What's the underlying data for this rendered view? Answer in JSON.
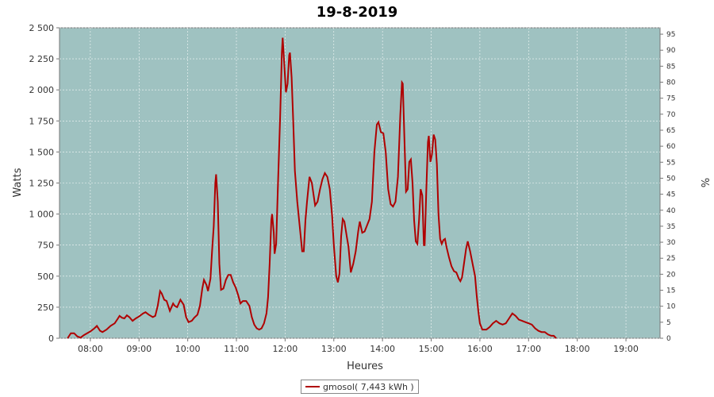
{
  "chart_data": {
    "type": "line",
    "title": "19-8-2019",
    "xlabel": "Heures",
    "ylabel": "Watts",
    "y2label": "%",
    "ylim": [
      0,
      2500
    ],
    "y2lim": [
      0,
      97
    ],
    "xlim": [
      "07:22",
      "19:42"
    ],
    "x_ticks": [
      "08:00",
      "09:00",
      "10:00",
      "11:00",
      "12:00",
      "13:00",
      "14:00",
      "15:00",
      "16:00",
      "17:00",
      "18:00",
      "19:00"
    ],
    "y_ticks": [
      "0",
      "250",
      "500",
      "750",
      "1 000",
      "1 250",
      "1 500",
      "1 750",
      "2 000",
      "2 250",
      "2 500"
    ],
    "y2_ticks": [
      "0",
      "5",
      "10",
      "15",
      "20",
      "25",
      "30",
      "35",
      "40",
      "45",
      "50",
      "55",
      "60",
      "65",
      "70",
      "75",
      "80",
      "85",
      "90",
      "95"
    ],
    "plot_background": "#9fc2c1",
    "grid": true,
    "legend_position": "bottom-center",
    "series": [
      {
        "name": "gmosol( 7,443 kWh )",
        "color": "#b00000",
        "points": [
          [
            "07:32",
            0
          ],
          [
            "07:36",
            40
          ],
          [
            "07:40",
            40
          ],
          [
            "07:44",
            15
          ],
          [
            "07:48",
            5
          ],
          [
            "07:52",
            25
          ],
          [
            "08:00",
            55
          ],
          [
            "08:05",
            80
          ],
          [
            "08:08",
            100
          ],
          [
            "08:12",
            60
          ],
          [
            "08:15",
            50
          ],
          [
            "08:20",
            70
          ],
          [
            "08:25",
            100
          ],
          [
            "08:30",
            120
          ],
          [
            "08:34",
            160
          ],
          [
            "08:36",
            180
          ],
          [
            "08:39",
            165
          ],
          [
            "08:42",
            160
          ],
          [
            "08:45",
            185
          ],
          [
            "08:48",
            170
          ],
          [
            "08:52",
            140
          ],
          [
            "08:56",
            160
          ],
          [
            "09:00",
            175
          ],
          [
            "09:05",
            200
          ],
          [
            "09:08",
            210
          ],
          [
            "09:12",
            190
          ],
          [
            "09:17",
            170
          ],
          [
            "09:20",
            180
          ],
          [
            "09:23",
            260
          ],
          [
            "09:26",
            380
          ],
          [
            "09:28",
            360
          ],
          [
            "09:31",
            310
          ],
          [
            "09:34",
            300
          ],
          [
            "09:38",
            220
          ],
          [
            "09:42",
            280
          ],
          [
            "09:44",
            260
          ],
          [
            "09:47",
            250
          ],
          [
            "09:51",
            310
          ],
          [
            "09:55",
            270
          ],
          [
            "09:58",
            170
          ],
          [
            "10:01",
            130
          ],
          [
            "10:05",
            140
          ],
          [
            "10:08",
            165
          ],
          [
            "10:12",
            190
          ],
          [
            "10:15",
            260
          ],
          [
            "10:18",
            400
          ],
          [
            "10:20",
            470
          ],
          [
            "10:23",
            430
          ],
          [
            "10:25",
            380
          ],
          [
            "10:28",
            480
          ],
          [
            "10:30",
            700
          ],
          [
            "10:32",
            900
          ],
          [
            "10:34",
            1250
          ],
          [
            "10:35",
            1320
          ],
          [
            "10:37",
            1100
          ],
          [
            "10:39",
            600
          ],
          [
            "10:41",
            390
          ],
          [
            "10:44",
            400
          ],
          [
            "10:47",
            470
          ],
          [
            "10:50",
            510
          ],
          [
            "10:53",
            510
          ],
          [
            "10:56",
            450
          ],
          [
            "10:59",
            410
          ],
          [
            "11:02",
            350
          ],
          [
            "11:05",
            280
          ],
          [
            "11:08",
            300
          ],
          [
            "11:12",
            300
          ],
          [
            "11:16",
            260
          ],
          [
            "11:19",
            170
          ],
          [
            "11:22",
            110
          ],
          [
            "11:25",
            80
          ],
          [
            "11:28",
            70
          ],
          [
            "11:31",
            80
          ],
          [
            "11:34",
            120
          ],
          [
            "11:37",
            200
          ],
          [
            "11:39",
            330
          ],
          [
            "11:41",
            600
          ],
          [
            "11:43",
            950
          ],
          [
            "11:44",
            1000
          ],
          [
            "11:46",
            850
          ],
          [
            "11:47",
            680
          ],
          [
            "11:49",
            760
          ],
          [
            "11:51",
            1200
          ],
          [
            "11:54",
            1800
          ],
          [
            "11:56",
            2300
          ],
          [
            "11:57",
            2420
          ],
          [
            "11:59",
            2200
          ],
          [
            "12:01",
            1980
          ],
          [
            "12:03",
            2050
          ],
          [
            "12:05",
            2280
          ],
          [
            "12:06",
            2300
          ],
          [
            "12:08",
            2100
          ],
          [
            "12:10",
            1750
          ],
          [
            "12:12",
            1350
          ],
          [
            "12:15",
            1100
          ],
          [
            "12:18",
            900
          ],
          [
            "12:21",
            700
          ],
          [
            "12:23",
            700
          ],
          [
            "12:25",
            950
          ],
          [
            "12:27",
            1100
          ],
          [
            "12:30",
            1300
          ],
          [
            "12:33",
            1250
          ],
          [
            "12:37",
            1070
          ],
          [
            "12:40",
            1100
          ],
          [
            "12:43",
            1200
          ],
          [
            "12:46",
            1280
          ],
          [
            "12:49",
            1330
          ],
          [
            "12:52",
            1300
          ],
          [
            "12:55",
            1200
          ],
          [
            "12:58",
            980
          ],
          [
            "13:00",
            750
          ],
          [
            "13:03",
            500
          ],
          [
            "13:05",
            450
          ],
          [
            "13:07",
            520
          ],
          [
            "13:09",
            820
          ],
          [
            "13:11",
            960
          ],
          [
            "13:13",
            940
          ],
          [
            "13:16",
            820
          ],
          [
            "13:18",
            740
          ],
          [
            "13:21",
            530
          ],
          [
            "13:24",
            600
          ],
          [
            "13:27",
            700
          ],
          [
            "13:30",
            860
          ],
          [
            "13:32",
            940
          ],
          [
            "13:35",
            850
          ],
          [
            "13:38",
            860
          ],
          [
            "13:41",
            910
          ],
          [
            "13:44",
            960
          ],
          [
            "13:47",
            1100
          ],
          [
            "13:50",
            1500
          ],
          [
            "13:53",
            1720
          ],
          [
            "13:55",
            1740
          ],
          [
            "13:58",
            1660
          ],
          [
            "14:01",
            1650
          ],
          [
            "14:04",
            1500
          ],
          [
            "14:07",
            1200
          ],
          [
            "14:10",
            1080
          ],
          [
            "14:13",
            1060
          ],
          [
            "14:16",
            1100
          ],
          [
            "14:19",
            1300
          ],
          [
            "14:22",
            1800
          ],
          [
            "14:24",
            2060
          ],
          [
            "14:25",
            2050
          ],
          [
            "14:27",
            1600
          ],
          [
            "14:29",
            1180
          ],
          [
            "14:31",
            1200
          ],
          [
            "14:33",
            1420
          ],
          [
            "14:35",
            1440
          ],
          [
            "14:37",
            1250
          ],
          [
            "14:39",
            950
          ],
          [
            "14:41",
            780
          ],
          [
            "14:43",
            760
          ],
          [
            "14:45",
            950
          ],
          [
            "14:47",
            1200
          ],
          [
            "14:49",
            1150
          ],
          [
            "14:51",
            750
          ],
          [
            "14:52",
            750
          ],
          [
            "14:54",
            1200
          ],
          [
            "14:56",
            1580
          ],
          [
            "14:57",
            1630
          ],
          [
            "14:59",
            1420
          ],
          [
            "15:01",
            1480
          ],
          [
            "15:03",
            1640
          ],
          [
            "15:05",
            1600
          ],
          [
            "15:07",
            1400
          ],
          [
            "15:09",
            1000
          ],
          [
            "15:11",
            800
          ],
          [
            "15:13",
            760
          ],
          [
            "15:15",
            790
          ],
          [
            "15:17",
            800
          ],
          [
            "15:19",
            730
          ],
          [
            "15:22",
            650
          ],
          [
            "15:25",
            580
          ],
          [
            "15:28",
            540
          ],
          [
            "15:31",
            530
          ],
          [
            "15:34",
            480
          ],
          [
            "15:36",
            460
          ],
          [
            "15:38",
            490
          ],
          [
            "15:40",
            580
          ],
          [
            "15:43",
            720
          ],
          [
            "15:45",
            780
          ],
          [
            "15:48",
            700
          ],
          [
            "15:51",
            600
          ],
          [
            "15:54",
            500
          ],
          [
            "15:56",
            350
          ],
          [
            "15:58",
            220
          ],
          [
            "16:00",
            120
          ],
          [
            "16:03",
            70
          ],
          [
            "16:08",
            70
          ],
          [
            "16:12",
            90
          ],
          [
            "16:16",
            120
          ],
          [
            "16:20",
            140
          ],
          [
            "16:24",
            120
          ],
          [
            "16:28",
            110
          ],
          [
            "16:32",
            120
          ],
          [
            "16:36",
            160
          ],
          [
            "16:40",
            200
          ],
          [
            "16:44",
            180
          ],
          [
            "16:48",
            150
          ],
          [
            "16:52",
            140
          ],
          [
            "16:56",
            130
          ],
          [
            "17:00",
            120
          ],
          [
            "17:04",
            110
          ],
          [
            "17:08",
            80
          ],
          [
            "17:12",
            60
          ],
          [
            "17:16",
            50
          ],
          [
            "17:20",
            50
          ],
          [
            "17:24",
            30
          ],
          [
            "17:28",
            20
          ],
          [
            "17:31",
            20
          ],
          [
            "17:34",
            0
          ]
        ]
      }
    ]
  }
}
